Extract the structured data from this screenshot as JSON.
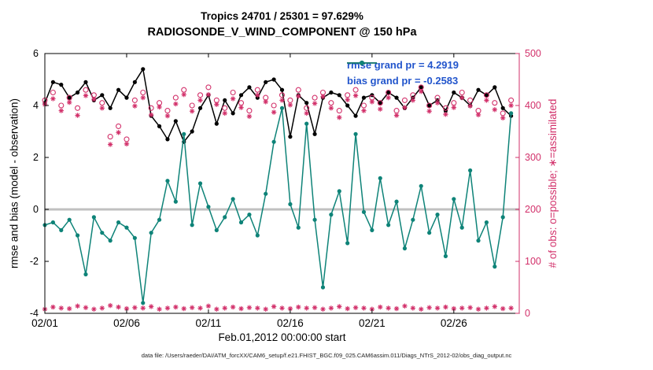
{
  "figure": {
    "title_line1": "Tropics 24701 / 25301 = 97.629%",
    "title_line2": "RADIOSONDE_V_WIND_COMPONENT @ 150 hPa",
    "xlabel": "Feb.01,2012 00:00:00 start",
    "ylabel_left": "rmse and bias (model - observation)",
    "ylabel_right": "# of obs: o=possible; ∗=assimilated",
    "caption": "data file: /Users/raeder/DAI/ATM_forcXX/CAM6_setup/f.e21.FHIST_BGC.f09_025.CAM6assim.011/Diags_NTrS_2012-02/obs_diag_output.nc",
    "legend": [
      {
        "label": "rmse grand pr = 4.2919",
        "color": "#000000"
      },
      {
        "label": "bias grand pr = -0.2583",
        "color": "#0e8378"
      }
    ]
  },
  "colors": {
    "rmse": "#000000",
    "bias": "#0e8378",
    "obs": "#d2306a",
    "legend_text": "#2255cc",
    "zero_line": "#c0c0c0",
    "axis": "#000000"
  },
  "chart_data": {
    "type": "line",
    "title": "Tropics 24701 / 25301 = 97.629% | RADIOSONDE_V_WIND_COMPONENT @ 150 hPa",
    "xlabel": "Feb.01,2012 00:00:00 start",
    "ylabel_left": "rmse and bias (model - observation)",
    "ylabel_right": "# of obs: o=possible; ∗=assimilated",
    "x_ticks": [
      "02/01",
      "02/06",
      "02/11",
      "02/16",
      "02/21",
      "02/26"
    ],
    "x_tick_days": [
      0,
      5,
      10,
      15,
      20,
      25
    ],
    "x_range_days": [
      0,
      29
    ],
    "x_step_days": 0.5,
    "ylim_left": [
      -4,
      6
    ],
    "yticks_left": [
      -4,
      -2,
      0,
      2,
      4,
      6
    ],
    "ylim_right": [
      0,
      500
    ],
    "yticks_right": [
      0,
      100,
      200,
      300,
      400,
      500
    ],
    "grid": false,
    "legend_position": "top-right-inside",
    "zero_line": {
      "y": 0,
      "color": "#c0c0c0"
    },
    "series": [
      {
        "name": "rmse",
        "axis": "left",
        "color": "#000000",
        "marker": "dot",
        "line": true,
        "values": [
          4.1,
          4.9,
          4.8,
          4.3,
          4.5,
          4.9,
          4.2,
          4.4,
          3.9,
          4.6,
          4.3,
          4.9,
          5.4,
          3.6,
          3.2,
          2.7,
          3.4,
          2.6,
          3.0,
          3.9,
          4.4,
          3.3,
          4.2,
          3.7,
          4.4,
          4.7,
          4.3,
          4.9,
          5.0,
          4.6,
          2.8,
          4.4,
          4.1,
          2.9,
          4.3,
          4.5,
          4.4,
          4.0,
          3.6,
          4.3,
          4.4,
          4.1,
          4.5,
          4.3,
          3.9,
          4.3,
          4.7,
          4.0,
          4.2,
          3.8,
          4.5,
          4.3,
          4.0,
          4.6,
          4.4,
          4.7,
          3.9,
          3.6
        ]
      },
      {
        "name": "bias",
        "axis": "left",
        "color": "#0e8378",
        "marker": "dot",
        "line": true,
        "values": [
          -0.6,
          -0.5,
          -0.8,
          -0.4,
          -1.0,
          -2.5,
          -0.3,
          -0.9,
          -1.2,
          -0.5,
          -0.7,
          -1.1,
          -3.6,
          -0.9,
          -0.4,
          1.1,
          0.3,
          2.9,
          -0.6,
          1.0,
          0.1,
          -0.8,
          -0.3,
          0.4,
          -0.5,
          -0.2,
          -1.0,
          0.6,
          2.6,
          3.9,
          0.2,
          -0.7,
          3.3,
          -0.4,
          -3.0,
          -0.2,
          0.7,
          -1.3,
          2.9,
          -0.1,
          -0.8,
          1.2,
          -0.6,
          0.3,
          -1.5,
          -0.4,
          0.9,
          -0.9,
          -0.2,
          -1.8,
          0.4,
          -0.7,
          1.5,
          -1.2,
          -0.5,
          -2.2,
          -0.3,
          3.7
        ]
      },
      {
        "name": "obs-possible",
        "axis": "right",
        "color": "#d2306a",
        "marker": "circle",
        "line": false,
        "values": [
          410,
          425,
          400,
          415,
          395,
          430,
          420,
          405,
          340,
          360,
          335,
          410,
          425,
          395,
          405,
          390,
          415,
          430,
          400,
          420,
          435,
          410,
          395,
          425,
          405,
          390,
          430,
          415,
          400,
          420,
          410,
          430,
          395,
          415,
          425,
          405,
          390,
          420,
          430,
          400,
          415,
          405,
          425,
          390,
          410,
          420,
          435,
          400,
          415,
          395,
          405,
          425,
          410,
          390,
          420,
          405,
          385,
          410
        ]
      },
      {
        "name": "obs-assimilated",
        "axis": "right",
        "color": "#d2306a",
        "marker": "asterisk",
        "line": false,
        "values": [
          402,
          413,
          390,
          406,
          381,
          419,
          412,
          395,
          325,
          348,
          326,
          399,
          415,
          382,
          397,
          380,
          403,
          421,
          389,
          410,
          421,
          402,
          385,
          413,
          396,
          379,
          420,
          407,
          387,
          410,
          401,
          418,
          385,
          404,
          417,
          395,
          377,
          411,
          419,
          390,
          407,
          393,
          415,
          381,
          396,
          410,
          427,
          389,
          405,
          383,
          396,
          415,
          399,
          382,
          410,
          392,
          376,
          400
        ]
      },
      {
        "name": "obs-rejected",
        "axis": "right",
        "color": "#d2306a",
        "marker": "asterisk",
        "line": false,
        "values": [
          8,
          12,
          10,
          9,
          14,
          11,
          8,
          10,
          15,
          12,
          9,
          11,
          10,
          13,
          8,
          10,
          12,
          9,
          11,
          10,
          14,
          8,
          10,
          12,
          9,
          11,
          10,
          8,
          13,
          10,
          9,
          12,
          10,
          11,
          8,
          10,
          13,
          9,
          11,
          10,
          8,
          12,
          10,
          9,
          14,
          10,
          8,
          11,
          10,
          12,
          9,
          10,
          11,
          8,
          10,
          13,
          9,
          10
        ]
      }
    ]
  }
}
